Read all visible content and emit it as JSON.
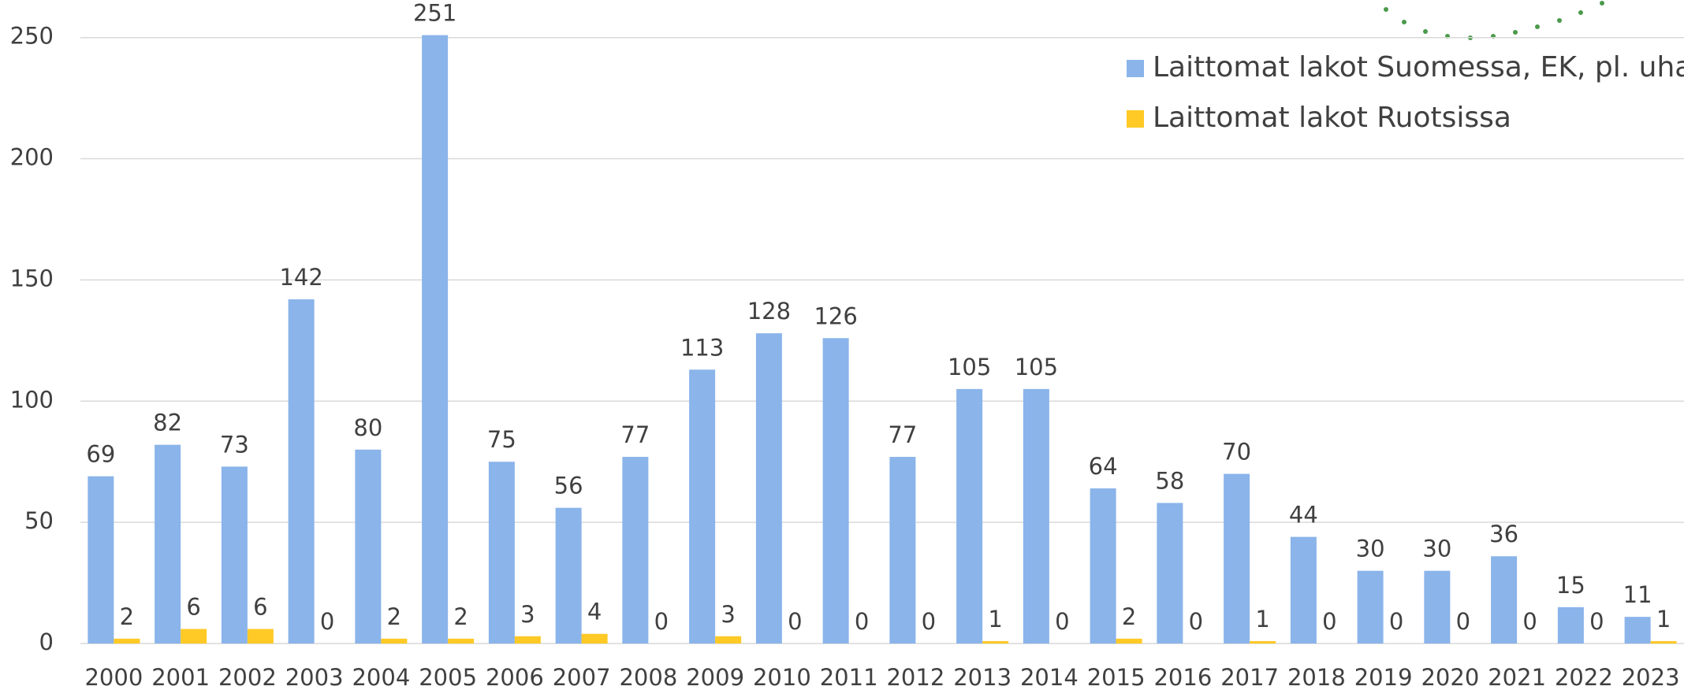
{
  "chart_data": {
    "type": "bar",
    "categories": [
      "2000",
      "2001",
      "2002",
      "2003",
      "2004",
      "2005",
      "2006",
      "2007",
      "2008",
      "2009",
      "2010",
      "2011",
      "2012",
      "2013",
      "2014",
      "2015",
      "2016",
      "2017",
      "2018",
      "2019",
      "2020",
      "2021",
      "2022",
      "2023"
    ],
    "series": [
      {
        "name": "Laittomat lakot Suomessa, EK, pl. uhat",
        "color": "#8ab4ea",
        "values": [
          69,
          82,
          73,
          142,
          80,
          251,
          75,
          56,
          77,
          113,
          128,
          126,
          77,
          105,
          105,
          64,
          58,
          70,
          44,
          30,
          30,
          36,
          15,
          11
        ]
      },
      {
        "name": "Laittomat lakot Ruotsissa",
        "color": "#ffc926",
        "values": [
          2,
          6,
          6,
          0,
          2,
          2,
          3,
          4,
          0,
          3,
          0,
          0,
          0,
          1,
          0,
          2,
          0,
          1,
          0,
          0,
          0,
          0,
          0,
          1
        ]
      }
    ],
    "ylim": [
      0,
      250
    ],
    "yticks": [
      0,
      50,
      100,
      150,
      200,
      250
    ],
    "grid": true,
    "legend": "top-right"
  }
}
